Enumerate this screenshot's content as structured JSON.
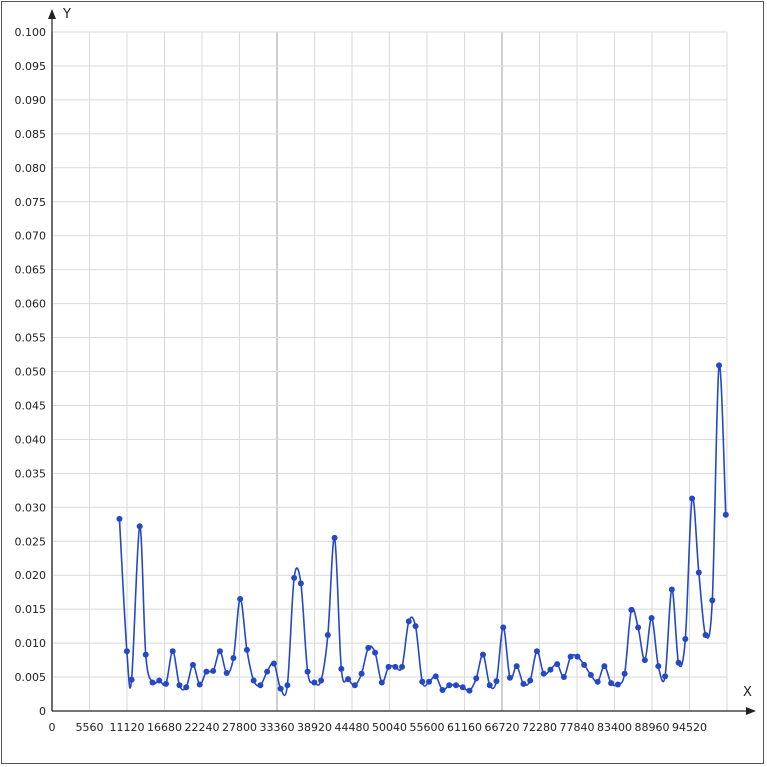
{
  "chart_data": {
    "type": "line",
    "title": "",
    "xlabel": "X",
    "ylabel": "Y",
    "xlim": [
      0,
      100080
    ],
    "ylim": [
      0,
      0.1
    ],
    "x_ticks": [
      "0",
      "5560",
      "11120",
      "16680",
      "22240",
      "27800",
      "33360",
      "38920",
      "44480",
      "50040",
      "55600",
      "61160",
      "66720",
      "72280",
      "77840",
      "83400",
      "88960",
      "94520"
    ],
    "y_ticks": [
      "0",
      "0.005",
      "0.010",
      "0.015",
      "0.020",
      "0.025",
      "0.030",
      "0.035",
      "0.040",
      "0.045",
      "0.050",
      "0.055",
      "0.060",
      "0.065",
      "0.070",
      "0.075",
      "0.080",
      "0.085",
      "0.090",
      "0.095",
      "0.100"
    ],
    "grid": true,
    "legend": "none",
    "line_color": "#2448c8",
    "series": [
      {
        "x": [
          10000,
          11100,
          11800,
          13000,
          13900,
          14900,
          15900,
          16900,
          17900,
          18900,
          19900,
          20900,
          21900,
          22900,
          23900,
          24900,
          25900,
          26900,
          27900,
          28900,
          29900,
          30900,
          31900,
          32900,
          33900,
          34900,
          35900,
          36900,
          37900,
          38900,
          39900,
          40900,
          41900,
          42900,
          43900,
          44900,
          45900,
          46900,
          47900,
          48900,
          49900,
          50900,
          51900,
          52900,
          53900,
          54900,
          55900,
          56900,
          57900,
          58900,
          59900,
          60900,
          61900,
          62900,
          63900,
          64900,
          65900,
          66900,
          67900,
          68900,
          69900,
          70900,
          71900,
          72900,
          73900,
          74900,
          75900,
          76900,
          77900,
          78900,
          79900,
          80900,
          81900,
          82900,
          83900,
          84900,
          85900,
          86900,
          87900,
          88900,
          89900,
          90900,
          91900,
          92900,
          93900,
          94900,
          95900,
          96900,
          97900,
          98900,
          99900
        ],
        "y": [
          0.0283,
          0.0088,
          0.0046,
          0.0272,
          0.0083,
          0.0042,
          0.0045,
          0.004,
          0.0088,
          0.0038,
          0.0035,
          0.0068,
          0.0039,
          0.0058,
          0.0059,
          0.0088,
          0.0056,
          0.0078,
          0.0165,
          0.009,
          0.0045,
          0.0038,
          0.0058,
          0.007,
          0.0033,
          0.0038,
          0.0196,
          0.0188,
          0.0058,
          0.0042,
          0.0045,
          0.0112,
          0.0255,
          0.0062,
          0.0047,
          0.0038,
          0.0055,
          0.0093,
          0.0086,
          0.0042,
          0.0065,
          0.0065,
          0.0065,
          0.0132,
          0.0125,
          0.0043,
          0.0043,
          0.0051,
          0.0031,
          0.0038,
          0.0038,
          0.0035,
          0.003,
          0.0048,
          0.0083,
          0.0038,
          0.0044,
          0.0123,
          0.0049,
          0.0066,
          0.004,
          0.0045,
          0.0088,
          0.0055,
          0.0061,
          0.0069,
          0.005,
          0.008,
          0.008,
          0.0068,
          0.0053,
          0.0043,
          0.0066,
          0.0041,
          0.0039,
          0.0055,
          0.0149,
          0.0123,
          0.0075,
          0.0137,
          0.0066,
          0.0051,
          0.0179,
          0.0071,
          0.0106,
          0.0313,
          0.0204,
          0.0112,
          0.0163,
          0.0509,
          0.0289
        ]
      }
    ]
  }
}
